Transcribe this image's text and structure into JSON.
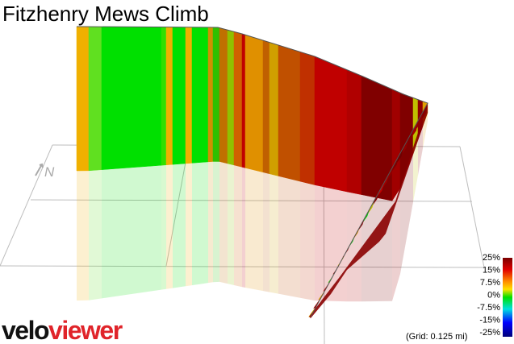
{
  "title": "Fitzhenry Mews Climb",
  "north": "N",
  "legend": {
    "labels": [
      "25%",
      "15%",
      "7.5%",
      "0%",
      "-7.5%",
      "-15%",
      "-25%"
    ]
  },
  "grid_note": "(Grid: 0.125 mi)",
  "logo": {
    "part1": "velo",
    "part2": "viewer"
  }
}
